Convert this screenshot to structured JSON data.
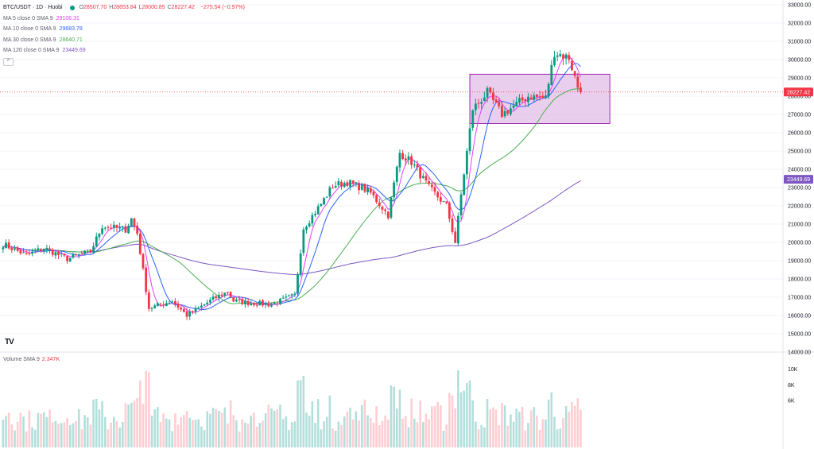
{
  "header": {
    "symbol": "BTC/USDT · 1D · Huobi",
    "ohlc": [
      {
        "key": "O",
        "value": "28507.70"
      },
      {
        "key": "H",
        "value": "28653.84"
      },
      {
        "key": "L",
        "value": "28000.85"
      },
      {
        "key": "C",
        "value": "28227.42"
      }
    ],
    "change": "−275.54 (−0.97%)",
    "up_color": "#089981",
    "down_color": "#f23645"
  },
  "indicators": [
    {
      "label": "MA 5 close 0 SMA 9",
      "value": "29106.31",
      "color": "#e040fb"
    },
    {
      "label": "MA 10 close 0 SMA 9",
      "value": "29683.78",
      "color": "#2962ff"
    },
    {
      "label": "MA 30 close 0 SMA 9",
      "value": "28640.71",
      "color": "#4caf50"
    },
    {
      "label": "MA 120 close 0 SMA 9",
      "value": "23449.69",
      "color": "#7e57c2"
    }
  ],
  "collapse_icon": "chevron-up-icon",
  "volume_legend": {
    "label": "Volume SMA 9",
    "value": "2.347K"
  },
  "logo": "TV",
  "chart_data": {
    "type": "candlestick",
    "yaxis_ticks": [
      14000,
      15000,
      16000,
      17000,
      18000,
      19000,
      20000,
      21000,
      22000,
      23000,
      24000,
      25000,
      26000,
      27000,
      28000,
      29000,
      30000,
      31000,
      32000,
      33000
    ],
    "ylim": [
      14000,
      33000
    ],
    "price_labels": [
      {
        "value": 28227.42,
        "text": "28227.42",
        "color": "#f23645"
      },
      {
        "value": 23449.69,
        "text": "23449.69",
        "color": "#7e57c2"
      }
    ],
    "volume_ticks": [
      {
        "value": 10000,
        "text": "10K"
      },
      {
        "value": 8000,
        "text": "8K"
      },
      {
        "value": 6000,
        "text": "6K"
      }
    ],
    "volume_max": 12000,
    "rectangle": {
      "from_index": 160,
      "to_index": 208,
      "price_low": 26500,
      "price_high": 29200,
      "fill": "#e1bee7",
      "stroke": "#9c27b0"
    },
    "waypoints": [
      [
        0,
        19900
      ],
      [
        8,
        19300
      ],
      [
        14,
        19700
      ],
      [
        22,
        19100
      ],
      [
        30,
        19500
      ],
      [
        34,
        20900
      ],
      [
        42,
        20700
      ],
      [
        44,
        21300
      ],
      [
        46,
        20500
      ],
      [
        50,
        16400
      ],
      [
        58,
        16800
      ],
      [
        63,
        16000
      ],
      [
        72,
        16900
      ],
      [
        77,
        17300
      ],
      [
        79,
        16800
      ],
      [
        84,
        16700
      ],
      [
        92,
        16600
      ],
      [
        100,
        17100
      ],
      [
        103,
        20800
      ],
      [
        109,
        22100
      ],
      [
        113,
        23100
      ],
      [
        118,
        23300
      ],
      [
        123,
        23000
      ],
      [
        126,
        22700
      ],
      [
        132,
        21500
      ],
      [
        136,
        24900
      ],
      [
        140,
        24400
      ],
      [
        146,
        23000
      ],
      [
        152,
        22000
      ],
      [
        155,
        20000
      ],
      [
        157,
        22600
      ],
      [
        161,
        27300
      ],
      [
        166,
        28200
      ],
      [
        171,
        27000
      ],
      [
        180,
        28000
      ],
      [
        186,
        27900
      ],
      [
        189,
        30400
      ],
      [
        194,
        30100
      ],
      [
        197,
        28500
      ],
      [
        198,
        28227
      ]
    ],
    "last_close": 28227.42
  }
}
